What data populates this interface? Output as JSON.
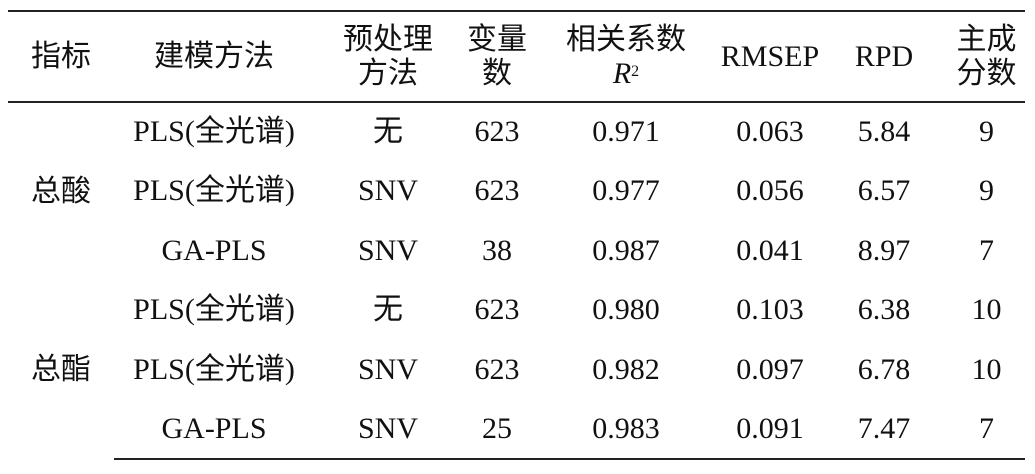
{
  "table": {
    "header": [
      [
        "指标"
      ],
      [
        "建模方法"
      ],
      [
        "预处理",
        "方法"
      ],
      [
        "变量",
        "数"
      ],
      [
        "相关系数",
        "R",
        "2"
      ],
      [
        "RMSEP"
      ],
      [
        "RPD"
      ],
      [
        "主成",
        "分数"
      ]
    ],
    "groups": [
      {
        "label": "总酸",
        "rows": [
          [
            "PLS(全光谱)",
            "无",
            "623",
            "0.971",
            "0.063",
            "5.84",
            "9"
          ],
          [
            "PLS(全光谱)",
            "SNV",
            "623",
            "0.977",
            "0.056",
            "6.57",
            "9"
          ],
          [
            "GA-PLS",
            "SNV",
            "38",
            "0.987",
            "0.041",
            "8.97",
            "7"
          ]
        ]
      },
      {
        "label": "总酯",
        "rows": [
          [
            "PLS(全光谱)",
            "无",
            "623",
            "0.980",
            "0.103",
            "6.38",
            "10"
          ],
          [
            "PLS(全光谱)",
            "SNV",
            "623",
            "0.982",
            "0.097",
            "6.78",
            "10"
          ],
          [
            "GA-PLS",
            "SNV",
            "25",
            "0.983",
            "0.091",
            "7.47",
            "7"
          ]
        ]
      }
    ]
  }
}
